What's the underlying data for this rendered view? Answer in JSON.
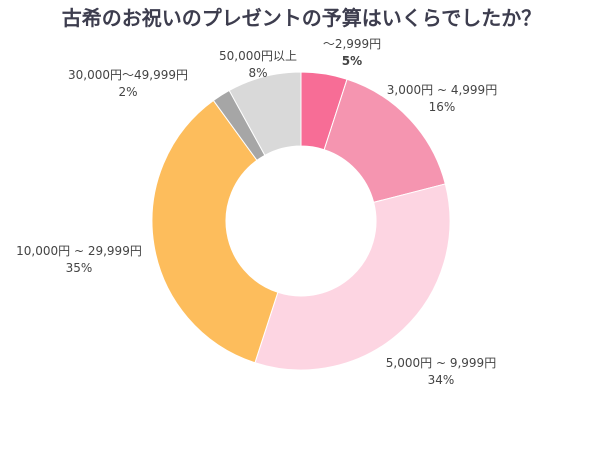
{
  "chart_data": {
    "type": "pie",
    "donut": true,
    "title": "古希のお祝いのプレゼントの予算はいくらでしたか？",
    "categories": [
      "〜2,999円",
      "3,000円 ~ 4,999円",
      "5,000円 ~ 9,999円",
      "10,000円 ~ 29,999円",
      "30,000円〜49,999円",
      "50,000円以上"
    ],
    "values": [
      5,
      16,
      34,
      35,
      2,
      8
    ],
    "data_labels": [
      "5%",
      "16%",
      "34%",
      "35%",
      "2%",
      "8%"
    ],
    "colors": [
      "#f76d96",
      "#f595b0",
      "#fdd5e2",
      "#fdbd5c",
      "#a6a6a6",
      "#d9d9d9"
    ],
    "legend": "none"
  }
}
